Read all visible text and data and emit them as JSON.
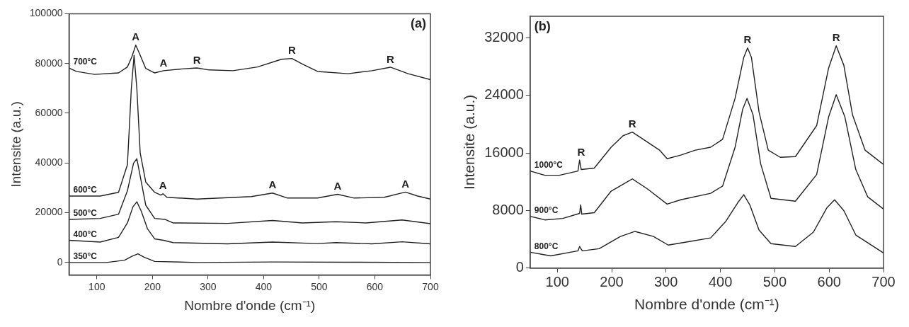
{
  "chart_data": [
    {
      "type": "line",
      "annotations": [
        "(a)",
        {
          "text": "A",
          "x": 170,
          "y": 87400
        },
        {
          "text": "A",
          "x": 220,
          "y": 77100
        },
        {
          "text": "R",
          "x": 280,
          "y": 78200
        },
        {
          "text": "R",
          "x": 451,
          "y": 82000
        },
        {
          "text": "R",
          "x": 628,
          "y": 78500
        },
        {
          "text": "A",
          "x": 219,
          "y": 27600
        },
        {
          "text": "A",
          "x": 416,
          "y": 27900
        },
        {
          "text": "A",
          "x": 533,
          "y": 27400
        },
        {
          "text": "A",
          "x": 655,
          "y": 28300
        }
      ],
      "xlabel": "Nombre d'onde (cm⁻¹)",
      "ylabel": "Intensite (a.u.)",
      "xlim": [
        50,
        700
      ],
      "xticks": [
        100,
        200,
        300,
        400,
        500,
        600,
        700
      ],
      "ylim": [
        -5000,
        100000
      ],
      "yticks": [
        0,
        20000,
        40000,
        60000,
        80000,
        100000
      ],
      "grid": false,
      "legend": false,
      "marker": "none",
      "line_style": "solid",
      "series": [
        {
          "name": "700°C",
          "color": "#222222",
          "x": [
            50,
            63,
            96,
            139,
            155,
            163,
            170,
            177,
            188,
            204,
            220,
            253,
            280,
            302,
            345,
            389,
            432,
            451,
            470,
            497,
            552,
            595,
            628,
            660,
            700
          ],
          "values": [
            78200,
            76800,
            75600,
            76200,
            78600,
            82700,
            87400,
            83800,
            78000,
            76200,
            77100,
            77800,
            78200,
            77400,
            77100,
            78600,
            81700,
            82000,
            79700,
            76800,
            75900,
            77100,
            78500,
            75900,
            73500
          ]
        },
        {
          "name": "600°C",
          "color": "#222222",
          "x": [
            50,
            106,
            139,
            155,
            162,
            167,
            172,
            178,
            188,
            204,
            215,
            219,
            226,
            280,
            378,
            416,
            443,
            497,
            533,
            563,
            617,
            655,
            677,
            700
          ],
          "values": [
            26700,
            26700,
            28200,
            39300,
            69800,
            83300,
            69800,
            44000,
            32300,
            28200,
            27100,
            27600,
            26200,
            25500,
            26500,
            27900,
            25900,
            25900,
            27400,
            25900,
            26200,
            28300,
            26700,
            25500
          ]
        },
        {
          "name": "500°C",
          "color": "#222222",
          "x": [
            50,
            106,
            139,
            155,
            166,
            172,
            178,
            188,
            204,
            223,
            237,
            335,
            416,
            470,
            530,
            584,
            649,
            700
          ],
          "values": [
            17300,
            17700,
            19400,
            28800,
            39900,
            41700,
            34700,
            23000,
            17700,
            17300,
            15900,
            15700,
            16900,
            15900,
            16400,
            15900,
            17100,
            15600
          ]
        },
        {
          "name": "400°C",
          "color": "#222222",
          "x": [
            50,
            106,
            139,
            155,
            165,
            172,
            180,
            191,
            204,
            220,
            237,
            335,
            416,
            497,
            530,
            595,
            649,
            700
          ],
          "values": [
            8900,
            8200,
            10100,
            15900,
            22400,
            24400,
            20600,
            13600,
            9500,
            8900,
            8000,
            7500,
            8200,
            7600,
            8000,
            7500,
            8300,
            7500
          ]
        },
        {
          "name": "350°C",
          "color": "#222222",
          "x": [
            50,
            117,
            150,
            163,
            174,
            185,
            204,
            280,
            416,
            552,
            700
          ],
          "values": [
            0,
            0,
            900,
            2500,
            3500,
            2100,
            400,
            0,
            200,
            100,
            0
          ]
        }
      ]
    },
    {
      "type": "line",
      "annotations": [
        "(b)",
        {
          "text": "R",
          "x": 144,
          "y": 15000
        },
        {
          "text": "R",
          "x": 238,
          "y": 18900
        },
        {
          "text": "R",
          "x": 450,
          "y": 30600
        },
        {
          "text": "R",
          "x": 613,
          "y": 30900
        }
      ],
      "xlabel": "Nombre d'onde (cm⁻¹)",
      "ylabel": "Intensite (a.u.)",
      "xlim": [
        50,
        700
      ],
      "xticks": [
        100,
        200,
        300,
        400,
        500,
        600,
        700
      ],
      "ylim": [
        0,
        35000
      ],
      "yticks": [
        0,
        8000,
        16000,
        24000,
        32000
      ],
      "grid": false,
      "legend": false,
      "marker": "none",
      "line_style": "solid",
      "series": [
        {
          "name": "1000°C",
          "color": "#222222",
          "x": [
            50,
            77,
            104,
            138,
            141,
            144,
            168,
            199,
            221,
            238,
            266,
            288,
            302,
            327,
            354,
            382,
            404,
            427,
            443,
            450,
            457,
            471,
            488,
            510,
            538,
            577,
            599,
            613,
            627,
            643,
            666,
            700
          ],
          "values": [
            13500,
            12900,
            12900,
            13500,
            15000,
            13700,
            13900,
            16800,
            18400,
            18900,
            17500,
            16400,
            15200,
            15700,
            16400,
            16800,
            17900,
            23600,
            29300,
            30600,
            29300,
            21700,
            16400,
            15400,
            15500,
            19800,
            27800,
            30900,
            28200,
            21300,
            16400,
            14400
          ]
        },
        {
          "name": "900°C",
          "color": "#222222",
          "x": [
            50,
            77,
            110,
            141,
            143,
            145,
            168,
            199,
            238,
            266,
            302,
            327,
            382,
            404,
            427,
            441,
            449,
            460,
            474,
            493,
            538,
            577,
            599,
            613,
            629,
            649,
            671,
            700
          ],
          "values": [
            7200,
            6700,
            6900,
            7600,
            8800,
            7500,
            7700,
            10700,
            12400,
            11000,
            8900,
            9500,
            10400,
            11400,
            16800,
            22100,
            23600,
            21300,
            14500,
            9700,
            9300,
            13000,
            21000,
            24100,
            21000,
            13700,
            9900,
            8200
          ]
        },
        {
          "name": "800°C",
          "color": "#222222",
          "x": [
            50,
            88,
            138,
            141,
            146,
            177,
            216,
            243,
            277,
            304,
            343,
            382,
            410,
            432,
            443,
            454,
            471,
            493,
            538,
            571,
            596,
            610,
            627,
            649,
            700
          ],
          "values": [
            2200,
            1700,
            2400,
            3000,
            2400,
            2700,
            4400,
            5100,
            4400,
            3200,
            3700,
            4200,
            6500,
            9100,
            10200,
            8800,
            5300,
            3400,
            3000,
            5000,
            8400,
            9500,
            8000,
            4600,
            2100
          ]
        }
      ]
    }
  ]
}
